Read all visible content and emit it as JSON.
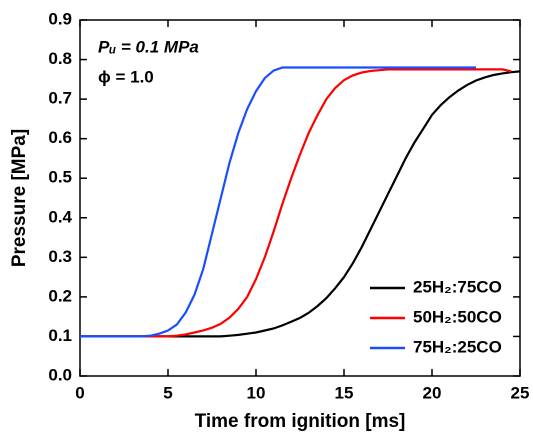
{
  "chart_data": {
    "type": "line",
    "xlabel": "Time from ignition [ms]",
    "ylabel": "Pressure [MPa]",
    "annotations": [
      "Pᵤ = 0.1 MPa",
      "ϕ = 1.0"
    ],
    "xlim": [
      0,
      25
    ],
    "xticks": [
      0,
      5,
      10,
      15,
      20,
      25
    ],
    "ylim": [
      0,
      0.9
    ],
    "yticks": [
      {
        "value": 0,
        "label": "0.0"
      },
      0.1,
      0.2,
      0.3,
      0.4,
      0.5,
      0.6,
      0.7,
      0.8,
      0.9
    ],
    "legend": "lower right",
    "grid": false,
    "x": [
      0,
      0.5,
      1,
      1.5,
      2,
      2.5,
      3,
      3.5,
      4,
      4.5,
      5,
      5.5,
      6,
      6.5,
      7,
      7.5,
      8,
      8.5,
      9,
      9.5,
      10,
      10.5,
      11,
      11.5,
      12,
      12.5,
      13,
      13.5,
      14,
      14.5,
      15,
      15.5,
      16,
      16.5,
      17,
      17.5,
      18,
      18.5,
      19,
      19.5,
      20,
      20.5,
      21,
      21.5,
      22,
      22.5,
      23,
      23.5,
      24,
      24.5,
      25
    ],
    "series": [
      {
        "name": "25H₂:75CO",
        "color": "#000000",
        "values": [
          0.1,
          0.1,
          0.1,
          0.1,
          0.1,
          0.1,
          0.1,
          0.1,
          0.1,
          0.1,
          0.1,
          0.1,
          0.1,
          0.1,
          0.1,
          0.1,
          0.1,
          0.102,
          0.104,
          0.107,
          0.11,
          0.115,
          0.12,
          0.128,
          0.137,
          0.147,
          0.16,
          0.177,
          0.197,
          0.222,
          0.25,
          0.285,
          0.325,
          0.37,
          0.415,
          0.46,
          0.505,
          0.55,
          0.59,
          0.625,
          0.66,
          0.685,
          0.705,
          0.722,
          0.736,
          0.747,
          0.755,
          0.761,
          0.765,
          0.768,
          0.77
        ]
      },
      {
        "name": "50H₂:50CO",
        "color": "#ff0000",
        "values": [
          0.1,
          0.1,
          0.1,
          0.1,
          0.1,
          0.1,
          0.1,
          0.1,
          0.1,
          0.1,
          0.1,
          0.102,
          0.105,
          0.11,
          0.115,
          0.122,
          0.132,
          0.148,
          0.17,
          0.2,
          0.245,
          0.3,
          0.365,
          0.435,
          0.5,
          0.56,
          0.615,
          0.66,
          0.7,
          0.728,
          0.748,
          0.76,
          0.767,
          0.771,
          0.773,
          0.775,
          0.775,
          0.775,
          0.775,
          0.775,
          0.775,
          0.775,
          0.775,
          0.775,
          0.775,
          0.775,
          0.775,
          0.775,
          0.775,
          0.77,
          null
        ]
      },
      {
        "name": "75H₂:25CO",
        "color": "#1a4dff",
        "values": [
          0.1,
          0.1,
          0.1,
          0.1,
          0.1,
          0.1,
          0.1,
          0.1,
          0.102,
          0.107,
          0.115,
          0.13,
          0.16,
          0.205,
          0.27,
          0.36,
          0.45,
          0.54,
          0.615,
          0.675,
          0.72,
          0.753,
          0.772,
          0.78,
          0.78,
          0.78,
          0.78,
          0.78,
          0.78,
          0.78,
          0.78,
          0.78,
          0.78,
          0.78,
          0.78,
          0.78,
          0.78,
          0.78,
          0.78,
          0.78,
          0.78,
          0.78,
          0.78,
          0.78,
          0.78,
          0.78,
          null,
          null,
          null,
          null,
          null
        ]
      }
    ]
  }
}
